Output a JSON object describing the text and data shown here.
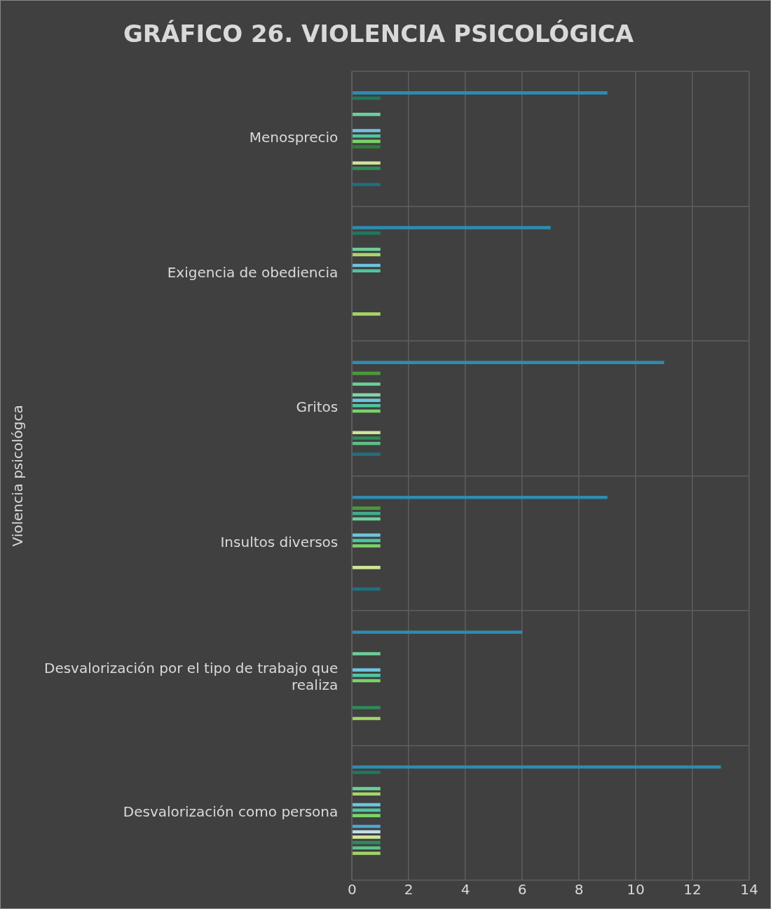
{
  "chart_data": {
    "type": "bar",
    "orientation": "horizontal",
    "title": "GRÁFICO 26. VIOLENCIA PSICOLÓGICA",
    "ylabel": "Violencia psicológca",
    "categories": [
      "Menosprecio",
      "Exigencia de obediencia",
      "Gritos",
      "Insultos diversos",
      "Desvalorización por el tipo de trabajo que realiza",
      "Desvalorización como persona"
    ],
    "series": [
      {
        "color": "#2e8bb0",
        "values": [
          9,
          7,
          11,
          9,
          6,
          13
        ]
      },
      {
        "color": "#1e7a5a",
        "values": [
          1,
          1,
          null,
          null,
          null,
          1
        ]
      },
      {
        "color": "#4a9a3a",
        "values": [
          null,
          null,
          1,
          1,
          null,
          null
        ]
      },
      {
        "color": "#3fae8a",
        "values": [
          null,
          null,
          null,
          1,
          null,
          null
        ]
      },
      {
        "color": "#6ccf9a",
        "values": [
          1,
          1,
          1,
          1,
          1,
          1
        ]
      },
      {
        "color": "#a8d46a",
        "values": [
          null,
          1,
          null,
          null,
          null,
          1
        ]
      },
      {
        "color": "#7fd6a6",
        "values": [
          null,
          null,
          1,
          null,
          null,
          null
        ]
      },
      {
        "color": "#6fc3df",
        "values": [
          1,
          1,
          1,
          1,
          1,
          1
        ]
      },
      {
        "color": "#4fc6a0",
        "values": [
          1,
          1,
          1,
          1,
          1,
          1
        ]
      },
      {
        "color": "#7ad36a",
        "values": [
          1,
          null,
          1,
          1,
          1,
          1
        ]
      },
      {
        "color": "#2f7a3a",
        "values": [
          1,
          null,
          null,
          null,
          null,
          null
        ]
      },
      {
        "color": "#4aa8d0",
        "values": [
          null,
          null,
          null,
          null,
          null,
          1
        ]
      },
      {
        "color": "#c0dde6",
        "values": [
          null,
          null,
          null,
          null,
          null,
          1
        ]
      },
      {
        "color": "#d0e39a",
        "values": [
          1,
          null,
          1,
          1,
          null,
          1
        ]
      },
      {
        "color": "#2f8a5a",
        "values": [
          1,
          null,
          1,
          null,
          1,
          1
        ]
      },
      {
        "color": "#5cc08a",
        "values": [
          null,
          null,
          1,
          null,
          null,
          1
        ]
      },
      {
        "color": "#a4d465",
        "values": [
          null,
          1,
          null,
          null,
          1,
          1
        ]
      },
      {
        "color": "#1f6f80",
        "values": [
          1,
          null,
          1,
          1,
          null,
          null
        ]
      }
    ],
    "xlim": [
      0,
      14
    ],
    "xticks": [
      0,
      2,
      4,
      6,
      8,
      10,
      12,
      14
    ],
    "grid": true,
    "legend": false
  }
}
